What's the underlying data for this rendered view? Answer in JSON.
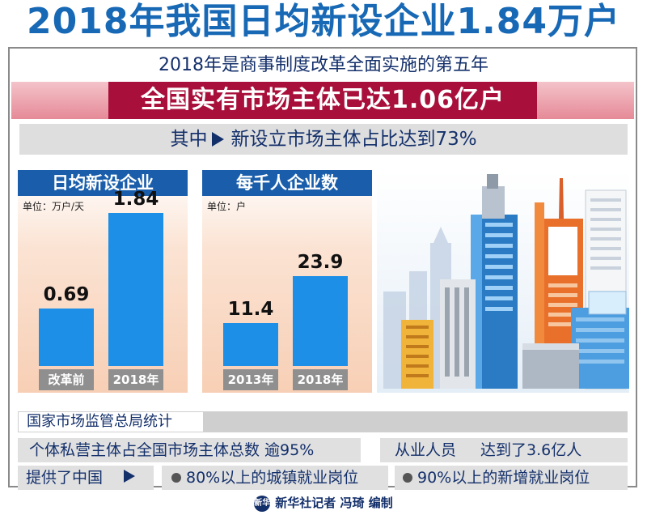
{
  "title": "2018年我国日均新设企业1.84万户",
  "subtitle": "2018年是商事制度改革全面实施的第五年",
  "banner": "全国实有市场主体已达1.06亿户",
  "highlight": {
    "prefix": "其中",
    "text": "新设立市场主体占比达到73%"
  },
  "chart_data": [
    {
      "type": "bar",
      "title": "日均新设企业",
      "unit": "单位：万户/天",
      "categories": [
        "改革前",
        "2018年"
      ],
      "values": [
        0.69,
        1.84
      ],
      "value_labels": [
        "0.69",
        "1.84"
      ],
      "ylim": [
        0,
        1.9
      ],
      "grid": false,
      "colors": {
        "bar": "#1d8fe6",
        "header": "#1a5eab",
        "category_bg": "#8f8f8f"
      }
    },
    {
      "type": "bar",
      "title": "每千人企业数",
      "unit": "单位：户",
      "categories": [
        "2013年",
        "2018年"
      ],
      "values": [
        11.4,
        23.9
      ],
      "value_labels": [
        "11.4",
        "23.9"
      ],
      "ylim": [
        0,
        42
      ],
      "grid": false,
      "colors": {
        "bar": "#1d8fe6",
        "header": "#1a5eab",
        "category_bg": "#8f8f8f"
      }
    }
  ],
  "source": "国家市场监管总局统计",
  "facts": {
    "private_share": "个体私营主体占全国市场主体总数 逾95%",
    "employment_label": "从业人员",
    "employment_value": "达到了3.6亿人",
    "provides_label": "提供了中国",
    "urban_jobs": "80%以上的城镇就业岗位",
    "new_jobs": "90%以上的新增就业岗位"
  },
  "credit": "新华社记者 冯琦 编制",
  "logo_text": "新华",
  "icons": [
    "triangle-arrow-icon",
    "bullet-dot-icon",
    "xinhua-logo-icon",
    "city-buildings-illustration"
  ]
}
